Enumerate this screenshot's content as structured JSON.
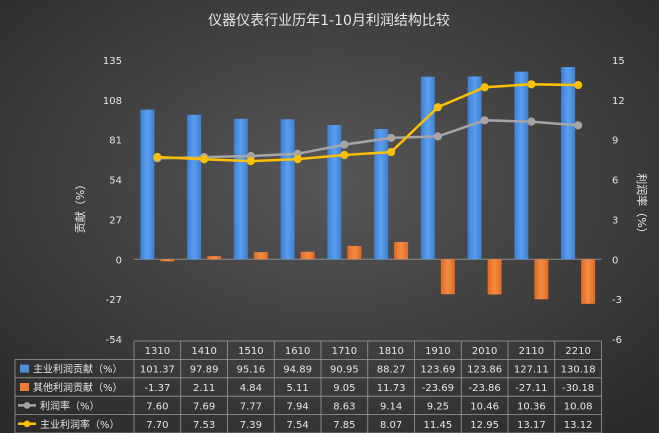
{
  "chart_data": {
    "type": "bar",
    "title": "仪器仪表行业历年1-10月利润结构比较",
    "ylabel": "贡献（%）",
    "y2label": "利润率（%）",
    "categories": [
      "1310",
      "1410",
      "1510",
      "1610",
      "1710",
      "1810",
      "1910",
      "2010",
      "2110",
      "2210"
    ],
    "ylim": [
      -54,
      135
    ],
    "yticks": [
      135,
      108,
      81,
      54,
      27,
      0,
      -27,
      -54
    ],
    "y2lim": [
      -6,
      15
    ],
    "y2ticks": [
      15,
      12,
      9,
      6,
      3,
      0,
      -3,
      -6
    ],
    "series": [
      {
        "name": "主业利润贡献（%）",
        "kind": "bar",
        "axis": "left",
        "color": "#4e8fdc",
        "values": [
          101.37,
          97.89,
          95.16,
          94.89,
          90.95,
          88.27,
          123.69,
          123.86,
          127.11,
          130.18
        ],
        "display": [
          "101.37",
          "97.89",
          "95.16",
          "94.89",
          "90.95",
          "88.27",
          "123.69",
          "123.86",
          "127.11",
          "130.18"
        ]
      },
      {
        "name": "其他利润贡献（%）",
        "kind": "bar",
        "axis": "left",
        "color": "#f07b35",
        "values": [
          -1.37,
          2.11,
          4.84,
          5.11,
          9.05,
          11.73,
          -23.69,
          -23.86,
          -27.11,
          -30.18
        ],
        "display": [
          "-1.37",
          "2.11",
          "4.84",
          "5.11",
          "9.05",
          "11.73",
          "-23.69",
          "-23.86",
          "-27.11",
          "-30.18"
        ]
      },
      {
        "name": "利润率（%）",
        "kind": "line",
        "axis": "right",
        "color": "#a5a5a5",
        "values": [
          7.6,
          7.69,
          7.77,
          7.94,
          8.63,
          9.14,
          9.25,
          10.46,
          10.36,
          10.08
        ],
        "display": [
          "7.60",
          "7.69",
          "7.77",
          "7.94",
          "8.63",
          "9.14",
          "9.25",
          "10.46",
          "10.36",
          "10.08"
        ]
      },
      {
        "name": "主业利润率（%）",
        "kind": "line",
        "axis": "right",
        "color": "#ffc000",
        "values": [
          7.7,
          7.53,
          7.39,
          7.54,
          7.85,
          8.07,
          11.45,
          12.95,
          13.17,
          13.12
        ],
        "display": [
          "7.70",
          "7.53",
          "7.39",
          "7.54",
          "7.85",
          "8.07",
          "11.45",
          "12.95",
          "13.17",
          "13.12"
        ]
      }
    ],
    "grid": false,
    "legend": "data-table-bottom",
    "background": "#3c3c3c"
  }
}
